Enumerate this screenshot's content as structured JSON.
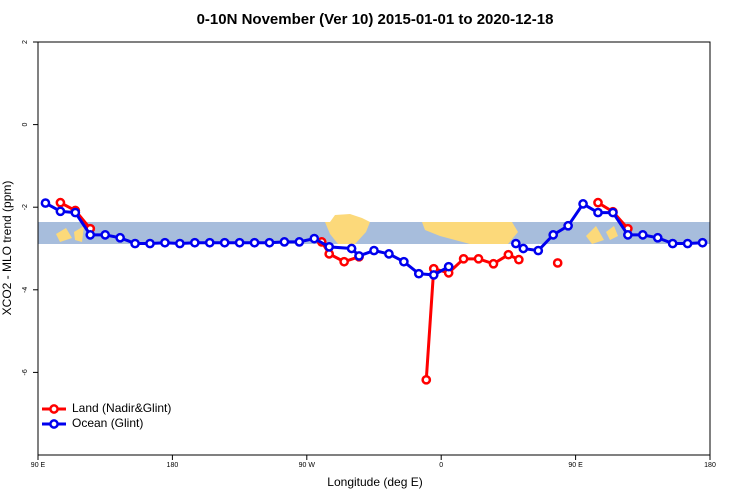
{
  "chart_data": {
    "type": "line",
    "title": "0-10N November (Ver 10)   2015-01-01 to 2020-12-18",
    "x_label": "Longitude (deg E)",
    "y_label": "XCO2 - MLO trend (ppm)",
    "xlim": [
      90,
      540
    ],
    "xticks": [
      {
        "value": 90,
        "label": "90 E"
      },
      180,
      {
        "value": 270,
        "label": "90 W"
      },
      {
        "value": 360,
        "label": "0"
      },
      {
        "value": 450,
        "label": "90 E"
      },
      {
        "value": 540,
        "label": "180"
      }
    ],
    "ylim": [
      -8,
      2
    ],
    "yticks": [
      2,
      0,
      -2,
      -4,
      -6
    ],
    "legend": "bottom left",
    "series": [
      {
        "name": "Land (Nadir&Glint)",
        "color": "#ff0000",
        "x": [
          105,
          115,
          125,
          200,
          280,
          285,
          295,
          305,
          330,
          350,
          355,
          365,
          375,
          385,
          395,
          405,
          412,
          425,
          438,
          450,
          465,
          475,
          485
        ],
        "values": [
          -1.89,
          -2.08,
          -2.52,
          null,
          -2.84,
          -3.13,
          -3.32,
          -3.2,
          null,
          -6.18,
          -3.49,
          -3.59,
          -3.25,
          -3.25,
          -3.37,
          -3.15,
          -3.27,
          null,
          -3.35,
          null,
          -1.89,
          -2.11,
          -2.52
        ]
      },
      {
        "name": "Ocean (Glint)",
        "color": "#0000ee",
        "x": [
          95,
          105,
          115,
          125,
          135,
          145,
          155,
          165,
          175,
          185,
          195,
          205,
          215,
          225,
          235,
          245,
          255,
          265,
          275,
          285,
          300,
          305,
          315,
          325,
          335,
          345,
          355,
          365,
          390,
          410,
          415,
          425,
          435,
          445,
          455,
          465,
          475,
          485,
          495,
          505,
          515,
          525,
          535
        ],
        "values": [
          -1.9,
          -2.1,
          -2.13,
          -2.67,
          -2.67,
          -2.74,
          -2.88,
          -2.88,
          -2.86,
          -2.88,
          -2.86,
          -2.86,
          -2.86,
          -2.86,
          -2.86,
          -2.86,
          -2.84,
          -2.84,
          -2.76,
          -2.96,
          -3.0,
          -3.18,
          -3.05,
          -3.13,
          -3.32,
          -3.61,
          -3.64,
          -3.44,
          null,
          -2.88,
          -3.0,
          -3.05,
          -2.67,
          -2.45,
          -1.92,
          -2.13,
          -2.13,
          -2.67,
          -2.67,
          -2.74,
          -2.88,
          -2.88,
          -2.86
        ]
      }
    ]
  }
}
